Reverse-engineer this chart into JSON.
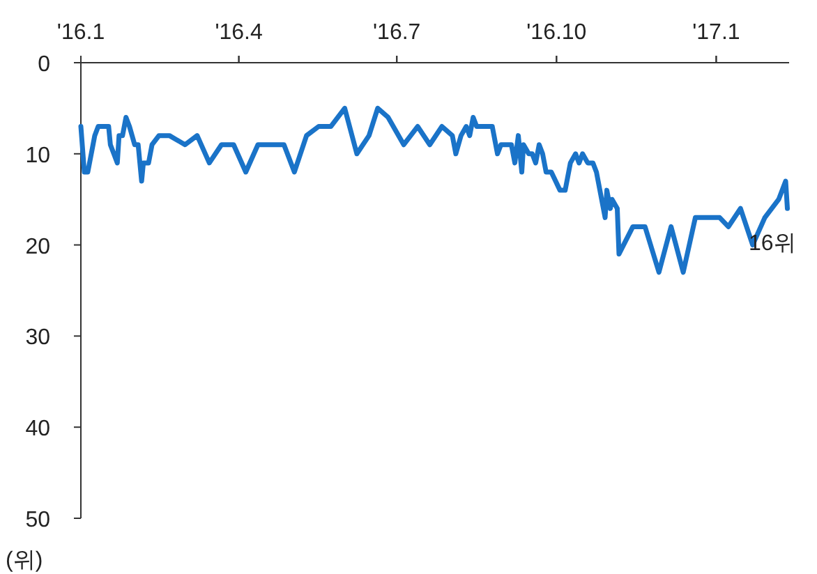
{
  "chart_data": {
    "type": "line",
    "ylabel": "(위)",
    "xlim": [
      "2016-01-01",
      "2017-02-12"
    ],
    "xticks": [
      {
        "value": "2016-01",
        "label": "'16.1"
      },
      {
        "value": "2016-04",
        "label": "'16.4"
      },
      {
        "value": "2016-07",
        "label": "'16.7"
      },
      {
        "value": "2016-10",
        "label": "'16.10"
      },
      {
        "value": "2017-01",
        "label": "'17.1"
      }
    ],
    "ylim": [
      50,
      0
    ],
    "yticks": [
      0,
      10,
      20,
      30,
      40,
      50
    ],
    "marker": "none",
    "line_style": "solid",
    "annotations": [
      {
        "text": "16위",
        "x": "2017-02-11",
        "y": 16
      }
    ],
    "series": [
      {
        "color": "#1a73c8",
        "x": [
          "2016-01-01",
          "2016-01-03",
          "2016-01-05",
          "2016-01-07",
          "2016-01-08",
          "2016-01-09",
          "2016-01-11",
          "2016-01-17",
          "2016-01-18",
          "2016-01-20",
          "2016-01-22",
          "2016-01-23",
          "2016-01-25",
          "2016-01-27",
          "2016-01-29",
          "2016-02-01",
          "2016-02-03",
          "2016-02-05",
          "2016-02-06",
          "2016-02-09",
          "2016-02-11",
          "2016-02-15",
          "2016-02-21",
          "2016-03-01",
          "2016-03-08",
          "2016-03-15",
          "2016-03-22",
          "2016-03-29",
          "2016-04-05",
          "2016-04-12",
          "2016-04-27",
          "2016-05-03",
          "2016-05-10",
          "2016-05-17",
          "2016-05-24",
          "2016-06-01",
          "2016-06-08",
          "2016-06-15",
          "2016-06-20",
          "2016-06-26",
          "2016-07-05",
          "2016-07-13",
          "2016-07-20",
          "2016-07-27",
          "2016-08-02",
          "2016-08-04",
          "2016-08-07",
          "2016-08-10",
          "2016-08-12",
          "2016-08-14",
          "2016-08-16",
          "2016-08-25",
          "2016-08-28",
          "2016-08-30",
          "2016-09-05",
          "2016-09-07",
          "2016-09-09",
          "2016-09-11",
          "2016-09-12",
          "2016-09-15",
          "2016-09-17",
          "2016-09-19",
          "2016-09-21",
          "2016-09-23",
          "2016-09-25",
          "2016-09-28",
          "2016-10-03",
          "2016-10-06",
          "2016-10-09",
          "2016-10-12",
          "2016-10-14",
          "2016-10-16",
          "2016-10-19",
          "2016-10-22",
          "2016-10-24",
          "2016-10-26",
          "2016-10-29",
          "2016-10-30",
          "2016-11-01",
          "2016-11-02",
          "2016-11-05",
          "2016-11-06",
          "2016-11-14",
          "2016-11-21",
          "2016-11-29",
          "2016-12-06",
          "2016-12-13",
          "2016-12-20",
          "2017-01-03",
          "2017-01-08",
          "2017-01-15",
          "2017-01-22",
          "2017-01-29",
          "2017-02-06",
          "2017-02-10",
          "2017-02-11"
        ],
        "values": [
          7,
          12,
          12,
          10,
          9,
          8,
          7,
          7,
          9,
          10,
          11,
          8,
          8,
          6,
          7,
          9,
          9,
          13,
          11,
          11,
          9,
          8,
          8,
          9,
          8,
          11,
          9,
          9,
          12,
          9,
          9,
          12,
          8,
          7,
          7,
          5,
          10,
          8,
          5,
          6,
          9,
          7,
          9,
          7,
          8,
          10,
          8,
          7,
          8,
          6,
          7,
          7,
          10,
          9,
          9,
          11,
          8,
          12,
          9,
          10,
          10,
          11,
          9,
          10,
          12,
          12,
          14,
          14,
          11,
          10,
          11,
          10,
          11,
          11,
          12,
          14,
          17,
          14,
          16,
          15,
          16,
          21,
          18,
          18,
          23,
          18,
          23,
          17,
          17,
          18,
          16,
          20,
          17,
          15,
          13,
          16
        ]
      }
    ]
  }
}
